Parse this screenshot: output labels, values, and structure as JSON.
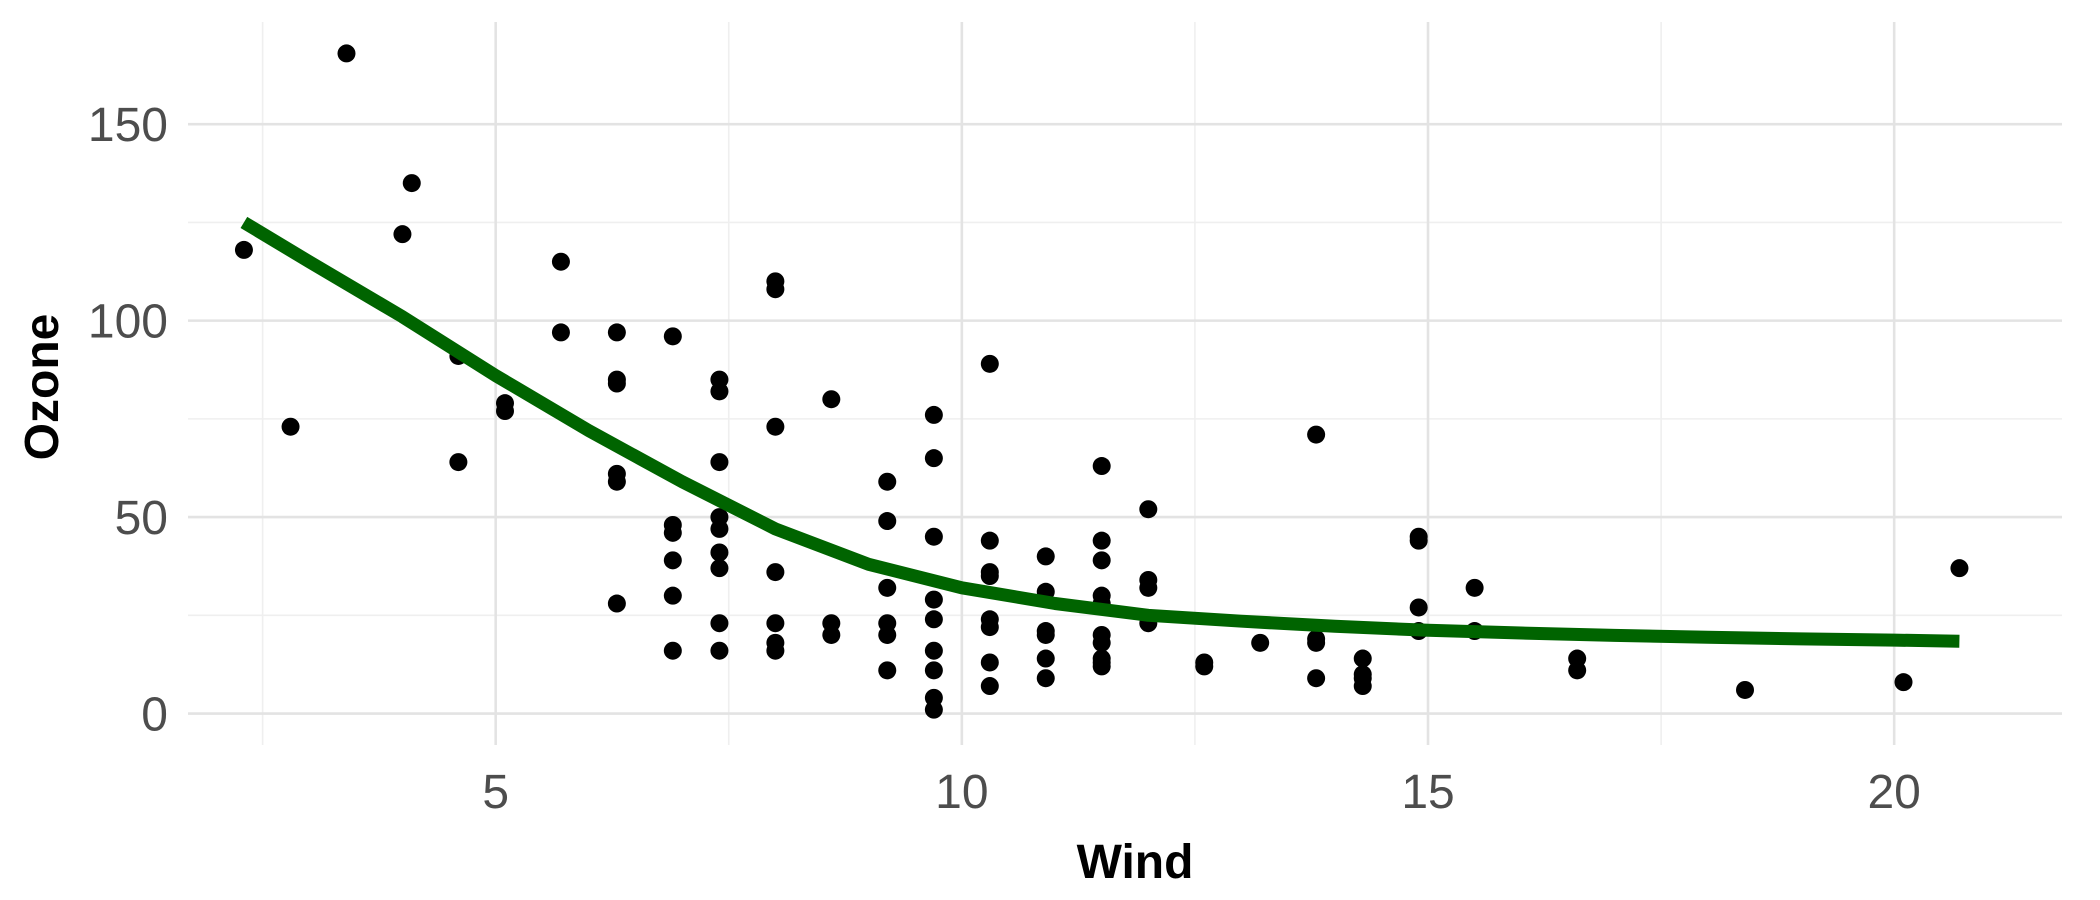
{
  "chart_data": {
    "type": "scatter",
    "xlabel": "Wind",
    "ylabel": "Ozone",
    "xlim": [
      1.7,
      21.8
    ],
    "ylim": [
      -8,
      176
    ],
    "x_ticks": [
      5,
      10,
      15,
      20
    ],
    "y_ticks": [
      0,
      50,
      100,
      150
    ],
    "x_minor_ticks": [
      2.5,
      7.5,
      12.5,
      17.5
    ],
    "y_minor_ticks": [
      25,
      75,
      125
    ],
    "grid": true,
    "legend": "none",
    "point_color": "#000000",
    "line_color": "#006400",
    "points": [
      {
        "x": 2.3,
        "y": 118
      },
      {
        "x": 2.8,
        "y": 73
      },
      {
        "x": 3.4,
        "y": 168
      },
      {
        "x": 4.0,
        "y": 122
      },
      {
        "x": 4.1,
        "y": 135
      },
      {
        "x": 4.6,
        "y": 91
      },
      {
        "x": 4.6,
        "y": 64
      },
      {
        "x": 5.1,
        "y": 79
      },
      {
        "x": 5.1,
        "y": 77
      },
      {
        "x": 5.7,
        "y": 115
      },
      {
        "x": 5.7,
        "y": 97
      },
      {
        "x": 6.3,
        "y": 97
      },
      {
        "x": 6.3,
        "y": 85
      },
      {
        "x": 6.3,
        "y": 84
      },
      {
        "x": 6.3,
        "y": 61
      },
      {
        "x": 6.3,
        "y": 59
      },
      {
        "x": 6.3,
        "y": 28
      },
      {
        "x": 6.9,
        "y": 96
      },
      {
        "x": 6.9,
        "y": 48
      },
      {
        "x": 6.9,
        "y": 46
      },
      {
        "x": 6.9,
        "y": 39
      },
      {
        "x": 6.9,
        "y": 30
      },
      {
        "x": 6.9,
        "y": 16
      },
      {
        "x": 7.4,
        "y": 85
      },
      {
        "x": 7.4,
        "y": 82
      },
      {
        "x": 7.4,
        "y": 64
      },
      {
        "x": 7.4,
        "y": 50
      },
      {
        "x": 7.4,
        "y": 47
      },
      {
        "x": 7.4,
        "y": 41
      },
      {
        "x": 7.4,
        "y": 37
      },
      {
        "x": 7.4,
        "y": 23
      },
      {
        "x": 7.4,
        "y": 16
      },
      {
        "x": 8.0,
        "y": 110
      },
      {
        "x": 8.0,
        "y": 108
      },
      {
        "x": 8.0,
        "y": 73
      },
      {
        "x": 8.0,
        "y": 36
      },
      {
        "x": 8.0,
        "y": 23
      },
      {
        "x": 8.0,
        "y": 18
      },
      {
        "x": 8.0,
        "y": 16
      },
      {
        "x": 8.6,
        "y": 80
      },
      {
        "x": 8.6,
        "y": 23
      },
      {
        "x": 8.6,
        "y": 20
      },
      {
        "x": 9.2,
        "y": 59
      },
      {
        "x": 9.2,
        "y": 49
      },
      {
        "x": 9.2,
        "y": 32
      },
      {
        "x": 9.2,
        "y": 23
      },
      {
        "x": 9.2,
        "y": 20
      },
      {
        "x": 9.2,
        "y": 11
      },
      {
        "x": 9.7,
        "y": 76
      },
      {
        "x": 9.7,
        "y": 65
      },
      {
        "x": 9.7,
        "y": 45
      },
      {
        "x": 9.7,
        "y": 29
      },
      {
        "x": 9.7,
        "y": 24
      },
      {
        "x": 9.7,
        "y": 16
      },
      {
        "x": 9.7,
        "y": 11
      },
      {
        "x": 9.7,
        "y": 4
      },
      {
        "x": 9.7,
        "y": 1
      },
      {
        "x": 10.3,
        "y": 89
      },
      {
        "x": 10.3,
        "y": 44
      },
      {
        "x": 10.3,
        "y": 36
      },
      {
        "x": 10.3,
        "y": 35
      },
      {
        "x": 10.3,
        "y": 24
      },
      {
        "x": 10.3,
        "y": 22
      },
      {
        "x": 10.3,
        "y": 13
      },
      {
        "x": 10.3,
        "y": 7
      },
      {
        "x": 10.9,
        "y": 40
      },
      {
        "x": 10.9,
        "y": 31
      },
      {
        "x": 10.9,
        "y": 21
      },
      {
        "x": 10.9,
        "y": 20
      },
      {
        "x": 10.9,
        "y": 14
      },
      {
        "x": 10.9,
        "y": 9
      },
      {
        "x": 11.5,
        "y": 63
      },
      {
        "x": 11.5,
        "y": 44
      },
      {
        "x": 11.5,
        "y": 39
      },
      {
        "x": 11.5,
        "y": 30
      },
      {
        "x": 11.5,
        "y": 28
      },
      {
        "x": 11.5,
        "y": 20
      },
      {
        "x": 11.5,
        "y": 18
      },
      {
        "x": 11.5,
        "y": 14
      },
      {
        "x": 11.5,
        "y": 13
      },
      {
        "x": 11.5,
        "y": 12
      },
      {
        "x": 12.0,
        "y": 52
      },
      {
        "x": 12.0,
        "y": 34
      },
      {
        "x": 12.0,
        "y": 32
      },
      {
        "x": 12.0,
        "y": 23
      },
      {
        "x": 12.6,
        "y": 13
      },
      {
        "x": 12.6,
        "y": 12
      },
      {
        "x": 13.2,
        "y": 18
      },
      {
        "x": 13.8,
        "y": 71
      },
      {
        "x": 13.8,
        "y": 19
      },
      {
        "x": 13.8,
        "y": 18
      },
      {
        "x": 13.8,
        "y": 9
      },
      {
        "x": 14.3,
        "y": 14
      },
      {
        "x": 14.3,
        "y": 10
      },
      {
        "x": 14.3,
        "y": 9
      },
      {
        "x": 14.3,
        "y": 7
      },
      {
        "x": 14.9,
        "y": 45
      },
      {
        "x": 14.9,
        "y": 44
      },
      {
        "x": 14.9,
        "y": 27
      },
      {
        "x": 14.9,
        "y": 21
      },
      {
        "x": 15.5,
        "y": 32
      },
      {
        "x": 15.5,
        "y": 21
      },
      {
        "x": 16.6,
        "y": 14
      },
      {
        "x": 16.6,
        "y": 11
      },
      {
        "x": 18.4,
        "y": 6
      },
      {
        "x": 20.1,
        "y": 8
      },
      {
        "x": 20.7,
        "y": 37
      }
    ],
    "smooth_line": {
      "x": [
        2.3,
        3.0,
        4.0,
        5.0,
        6.0,
        7.0,
        8.0,
        9.0,
        10.0,
        11.0,
        12.0,
        13.0,
        14.0,
        15.0,
        16.0,
        17.0,
        18.0,
        19.0,
        20.0,
        20.7
      ],
      "y": [
        125,
        115,
        101,
        86,
        72,
        59,
        47,
        38,
        32,
        28,
        25,
        23.5,
        22.2,
        21.2,
        20.5,
        19.9,
        19.4,
        19.0,
        18.7,
        18.4
      ]
    }
  }
}
